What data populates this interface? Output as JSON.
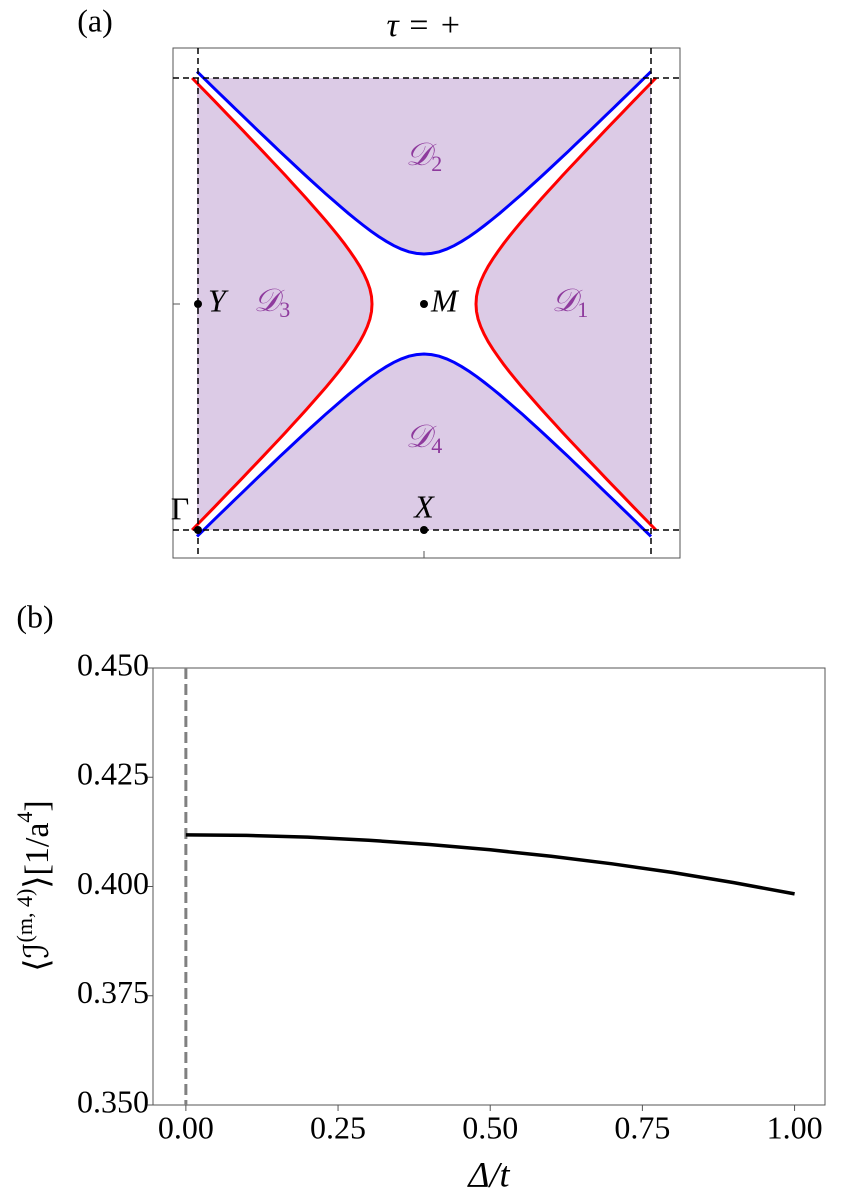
{
  "chart_data": [
    {
      "type": "zone-map",
      "panel_label": "(a)",
      "title": "τ = +",
      "fill_color": "#dccbe6",
      "curve_colors": [
        "#ff0000",
        "#0000ff"
      ],
      "region_color": "#8e3a9d",
      "points": [
        {
          "label": "Γ"
        },
        {
          "label": "X"
        },
        {
          "label": "Y"
        },
        {
          "label": "M"
        }
      ],
      "regions": [
        {
          "label": "𝒟",
          "sub": "1"
        },
        {
          "label": "𝒟",
          "sub": "2"
        },
        {
          "label": "𝒟",
          "sub": "3"
        },
        {
          "label": "𝒟",
          "sub": "4"
        }
      ]
    },
    {
      "type": "line",
      "panel_label": "(b)",
      "xlabel": "Δ/t",
      "ylabel": [
        {
          "text": "⟨ℐ"
        },
        {
          "sup": "(m, 4)"
        },
        {
          "text": "⟩[1/a"
        },
        {
          "sup": "4"
        },
        {
          "text": "]"
        }
      ],
      "x": [
        0,
        0.1,
        0.2,
        0.3,
        0.4,
        0.5,
        0.6,
        0.7,
        0.8,
        0.9,
        1.0
      ],
      "values": [
        0.4118,
        0.4117,
        0.4113,
        0.4106,
        0.4096,
        0.4084,
        0.4069,
        0.4052,
        0.4032,
        0.4009,
        0.3983
      ],
      "color": "#000000",
      "vline": 0,
      "vline_color": "#808080",
      "xlim": [
        -0.054,
        1.05
      ],
      "ylim": [
        0.35,
        0.45
      ],
      "xticks": [
        {
          "value": 0,
          "label": "0.00"
        },
        {
          "value": 0.25,
          "label": "0.25"
        },
        {
          "value": 0.5,
          "label": "0.50"
        },
        {
          "value": 0.75,
          "label": "0.75"
        },
        {
          "value": 1.0,
          "label": "1.00"
        }
      ],
      "yticks": [
        {
          "value": 0.35,
          "label": "0.350"
        },
        {
          "value": 0.375,
          "label": "0.375"
        },
        {
          "value": 0.4,
          "label": "0.400"
        },
        {
          "value": 0.425,
          "label": "0.425"
        },
        {
          "value": 0.45,
          "label": "0.450"
        }
      ]
    }
  ]
}
